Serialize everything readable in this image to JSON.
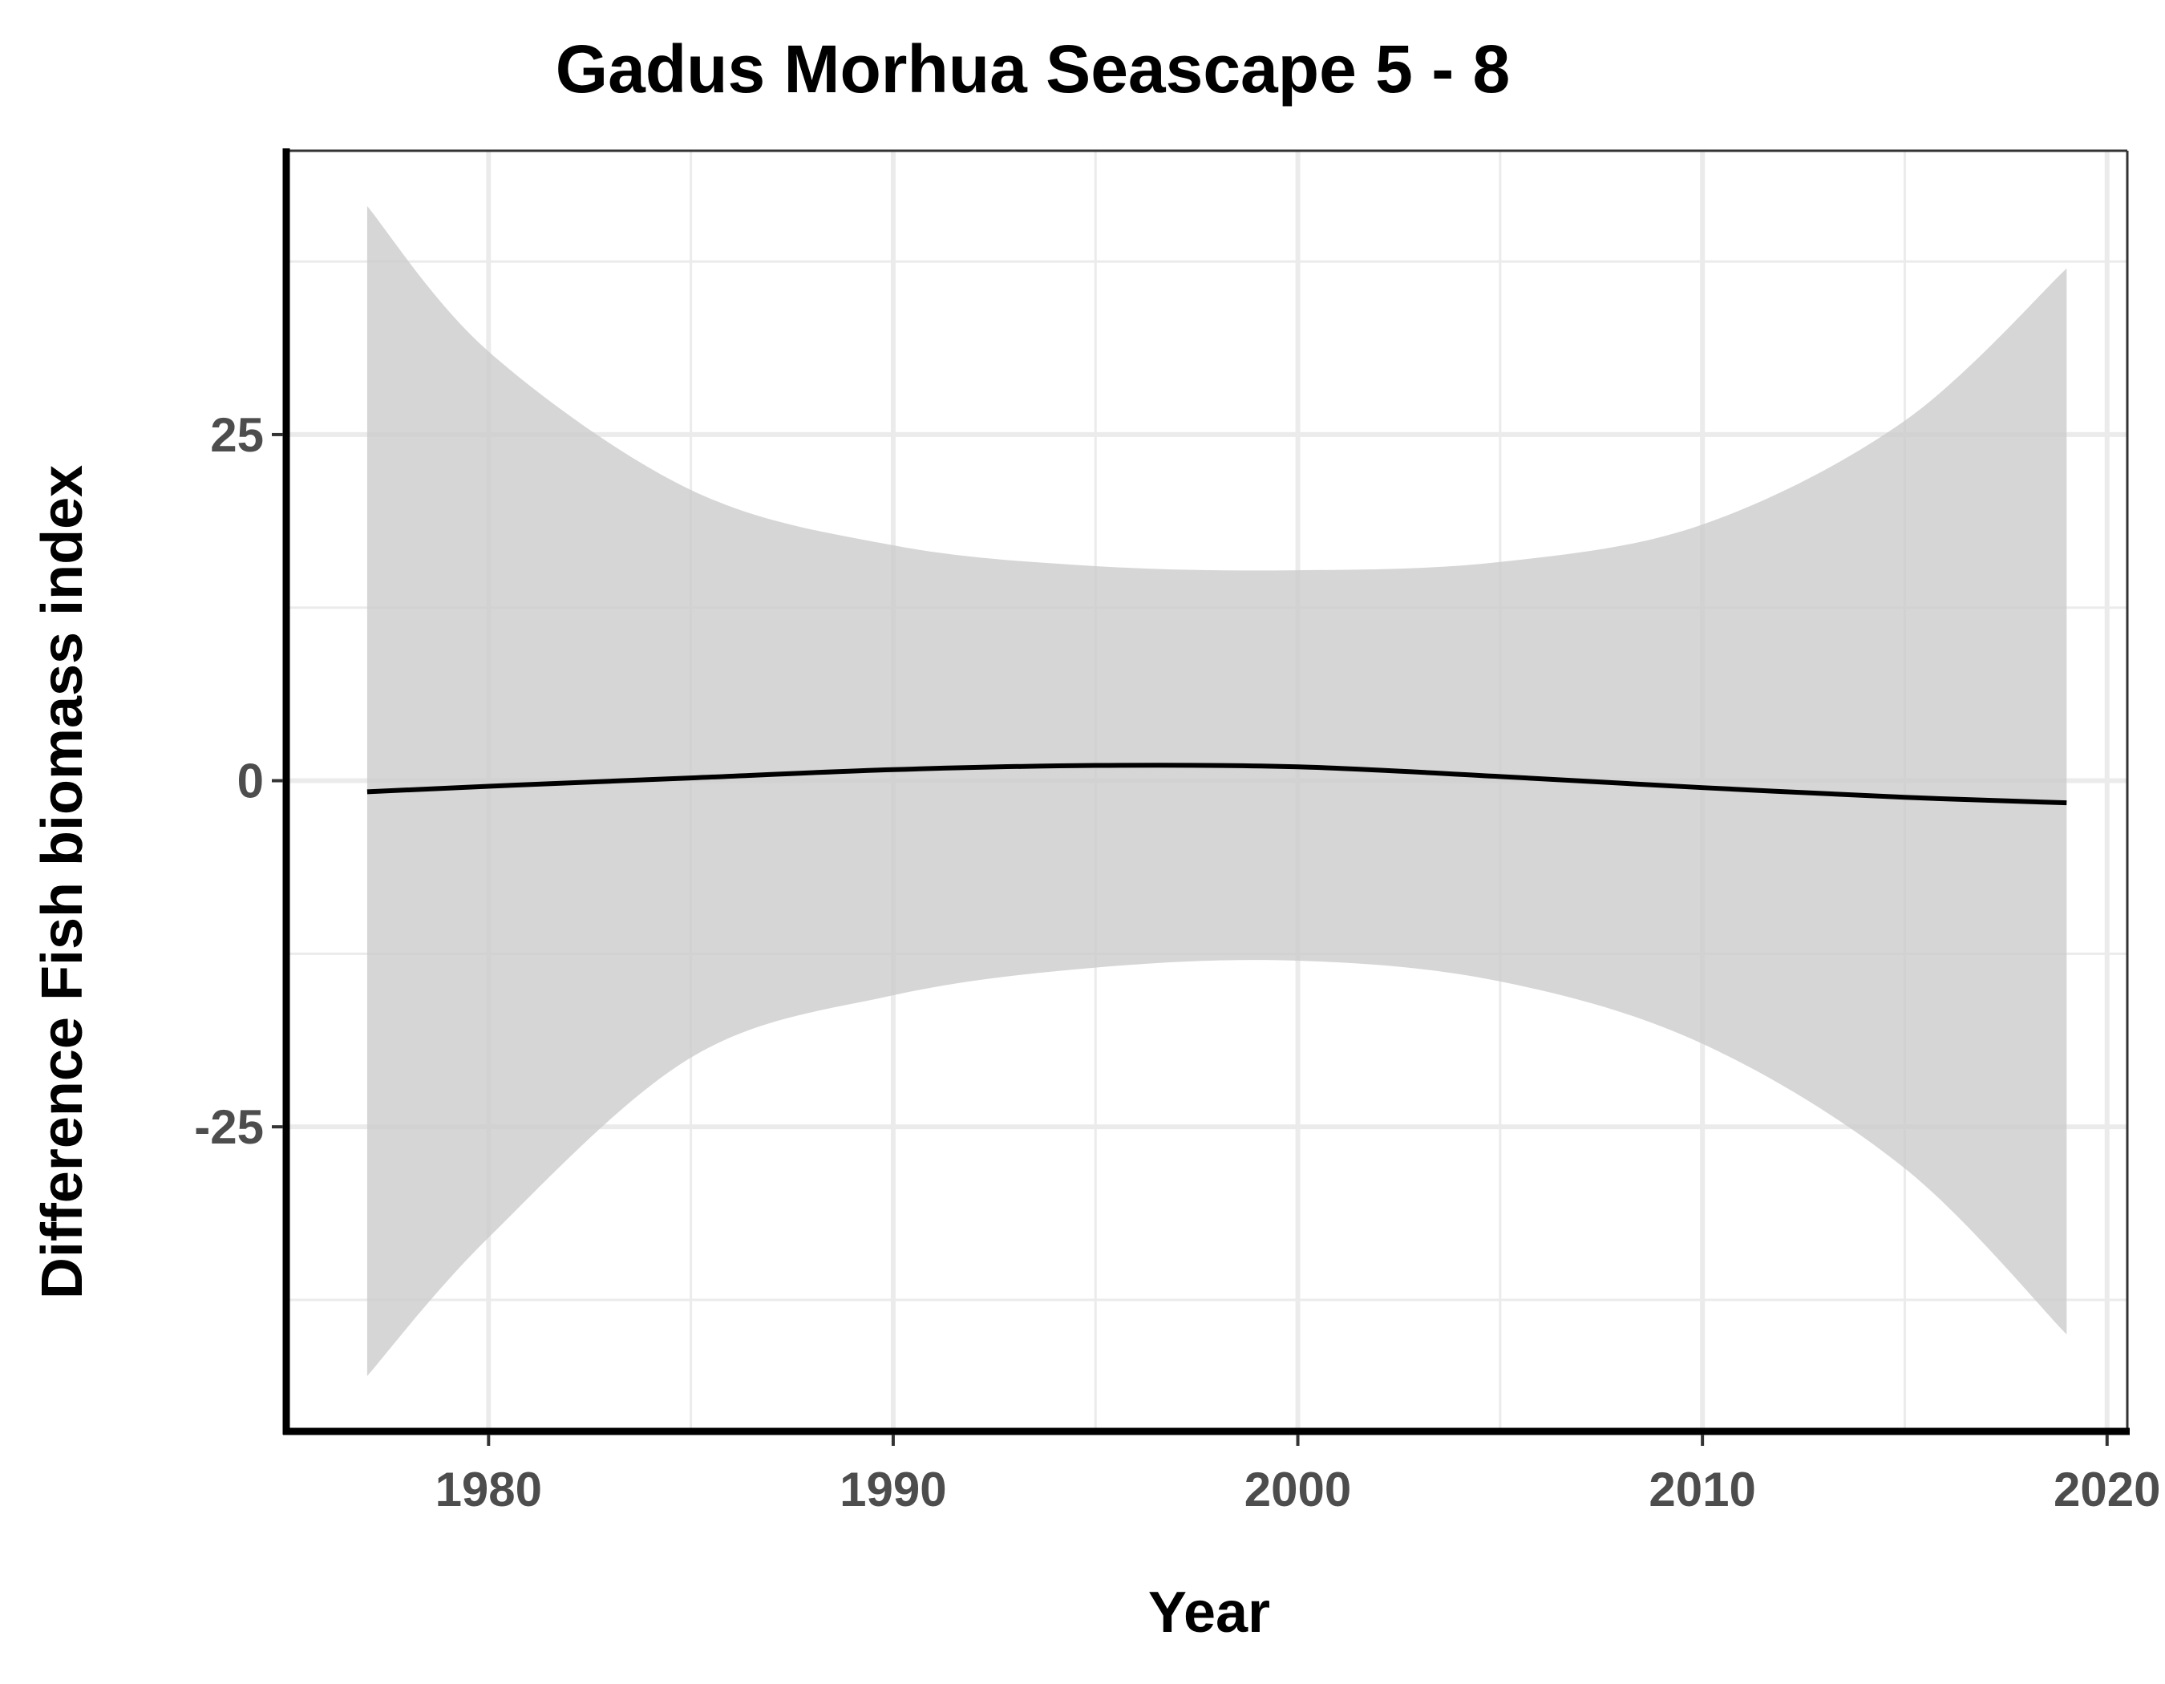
{
  "chart_data": {
    "type": "line",
    "title": "Gadus Morhua Seascape 5 - 8",
    "xlabel": "Year",
    "ylabel": "Difference Fish biomass index",
    "xlim": [
      1975,
      2020.5
    ],
    "ylim": [
      -47,
      45.5
    ],
    "x_ticks": [
      1980,
      1990,
      2000,
      2010,
      2020
    ],
    "x_tick_labels": [
      "1980",
      "1990",
      "2000",
      "2010",
      "2020"
    ],
    "y_ticks": [
      -25,
      0,
      25
    ],
    "y_tick_labels": [
      "-25",
      "0",
      "25"
    ],
    "x_minor_ticks": [
      1975,
      1985,
      1995,
      2005,
      2015
    ],
    "y_minor_ticks": [
      -37.5,
      -12.5,
      12.5,
      37.5
    ],
    "grid": true,
    "legend": "none",
    "series": [
      {
        "x": [
          1977,
          1980,
          1985,
          1990,
          1995,
          2000,
          2005,
          2010,
          2015,
          2019
        ],
        "y": [
          -0.8,
          -0.4,
          0.2,
          0.8,
          1.1,
          1.0,
          0.3,
          -0.5,
          -1.2,
          -1.6
        ],
        "lower": [
          -43.0,
          -33.0,
          -20.0,
          -15.5,
          -13.5,
          -13.0,
          -14.5,
          -19.0,
          -28.0,
          -40.0
        ],
        "upper": [
          41.5,
          31.0,
          21.0,
          17.0,
          15.5,
          15.2,
          15.8,
          18.5,
          26.0,
          37.0
        ]
      }
    ],
    "colors": {
      "line": "#000000",
      "ribbon": "#cccccc",
      "ribbon_opacity": 0.8
    }
  }
}
